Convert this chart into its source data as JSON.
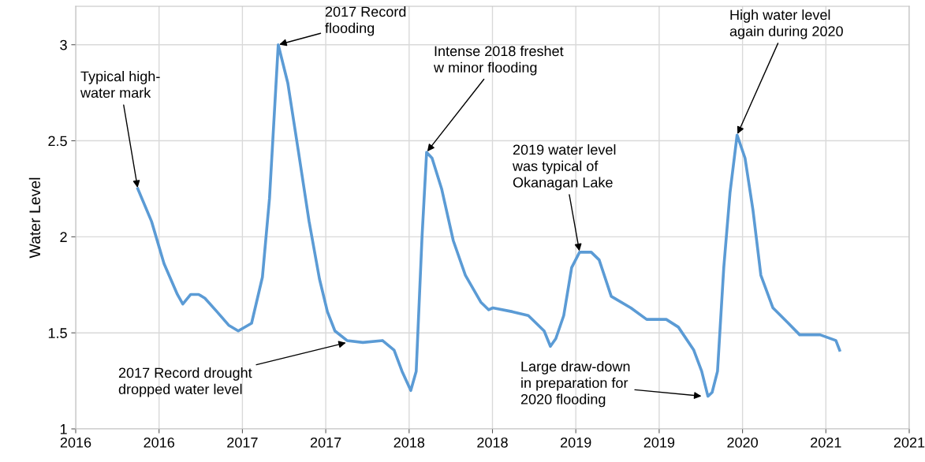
{
  "chart_data": {
    "type": "line",
    "ylabel": "Water Level",
    "xlim": [
      "2016-02-01",
      "2021-07-24"
    ],
    "xticks": [
      {
        "value": "2016-02-01",
        "label": "2016"
      },
      {
        "value": "2016-08-19",
        "label": "2016"
      },
      {
        "value": "2017-03-07",
        "label": "2017"
      },
      {
        "value": "2017-09-23",
        "label": "2017"
      },
      {
        "value": "2018-04-11",
        "label": "2018"
      },
      {
        "value": "2018-10-28",
        "label": "2018"
      },
      {
        "value": "2019-05-16",
        "label": "2019"
      },
      {
        "value": "2019-12-02",
        "label": "2019"
      },
      {
        "value": "2020-06-19",
        "label": "2020"
      },
      {
        "value": "2021-01-05",
        "label": "2021"
      },
      {
        "value": "2021-07-24",
        "label": "2021"
      }
    ],
    "ylim": [
      1,
      3.2
    ],
    "yticks": [
      1,
      1.5,
      2,
      2.5,
      3
    ],
    "grid": true,
    "marker": "none",
    "line_style": "solid",
    "x": [
      "2016-06-29",
      "2016-08-01",
      "2016-08-31",
      "2016-10-02",
      "2016-10-15",
      "2016-11-03",
      "2016-11-22",
      "2016-12-07",
      "2017-01-05",
      "2017-02-02",
      "2017-02-25",
      "2017-03-29",
      "2017-04-24",
      "2017-05-11",
      "2017-06-01",
      "2017-06-24",
      "2017-07-19",
      "2017-08-14",
      "2017-09-08",
      "2017-09-27",
      "2017-10-15",
      "2017-11-13",
      "2017-12-21",
      "2018-02-06",
      "2018-03-06",
      "2018-03-25",
      "2018-04-15",
      "2018-04-28",
      "2018-05-12",
      "2018-05-23",
      "2018-06-05",
      "2018-06-28",
      "2018-07-26",
      "2018-08-24",
      "2018-09-30",
      "2018-10-19",
      "2018-10-29",
      "2018-12-15",
      "2019-01-22",
      "2019-03-01",
      "2019-03-16",
      "2019-03-29",
      "2019-04-17",
      "2019-05-06",
      "2019-05-25",
      "2019-06-22",
      "2019-07-11",
      "2019-08-09",
      "2019-09-25",
      "2019-11-02",
      "2019-12-19",
      "2020-01-17",
      "2020-02-23",
      "2020-03-13",
      "2020-03-28",
      "2020-04-07",
      "2020-04-20",
      "2020-05-05",
      "2020-05-20",
      "2020-06-06",
      "2020-06-25",
      "2020-07-14",
      "2020-08-02",
      "2020-08-31",
      "2020-10-07",
      "2020-11-03",
      "2020-12-22",
      "2021-01-29",
      "2021-02-07"
    ],
    "series": [
      {
        "color": "#5b9bd5",
        "values": [
          2.25,
          2.08,
          1.86,
          1.7,
          1.65,
          1.7,
          1.7,
          1.68,
          1.61,
          1.54,
          1.51,
          1.55,
          1.79,
          2.2,
          3.0,
          2.8,
          2.45,
          2.08,
          1.78,
          1.61,
          1.51,
          1.46,
          1.45,
          1.46,
          1.41,
          1.3,
          1.2,
          1.3,
          2.0,
          2.44,
          2.41,
          2.25,
          1.98,
          1.8,
          1.66,
          1.62,
          1.63,
          1.61,
          1.59,
          1.51,
          1.43,
          1.47,
          1.59,
          1.84,
          1.92,
          1.92,
          1.88,
          1.69,
          1.63,
          1.57,
          1.57,
          1.53,
          1.41,
          1.3,
          1.17,
          1.19,
          1.3,
          1.84,
          2.23,
          2.53,
          2.41,
          2.14,
          1.8,
          1.63,
          1.55,
          1.49,
          1.49,
          1.46,
          1.41
        ]
      }
    ],
    "annotations": [
      {
        "text": "Typical high-\nwater mark",
        "x": "2016-06-29",
        "y": 2.25
      },
      {
        "text": "2017 Record\nflooding",
        "x": "2017-06-01",
        "y": 3.0
      },
      {
        "text": "Intense 2018 freshet\nw minor flooding",
        "x": "2018-05-23",
        "y": 2.44
      },
      {
        "text": "2019 water level\nwas typical of\nOkanagan Lake",
        "x": "2019-05-25",
        "y": 1.92
      },
      {
        "text": "High water level\nagain during 2020",
        "x": "2020-06-06",
        "y": 2.53
      },
      {
        "text": "2017 Record drought\ndropped water level",
        "x": "2017-11-13",
        "y": 1.45
      },
      {
        "text": "Large draw-down\nin preparation for\n2020 flooding",
        "x": "2020-03-15",
        "y": 1.17
      }
    ]
  }
}
